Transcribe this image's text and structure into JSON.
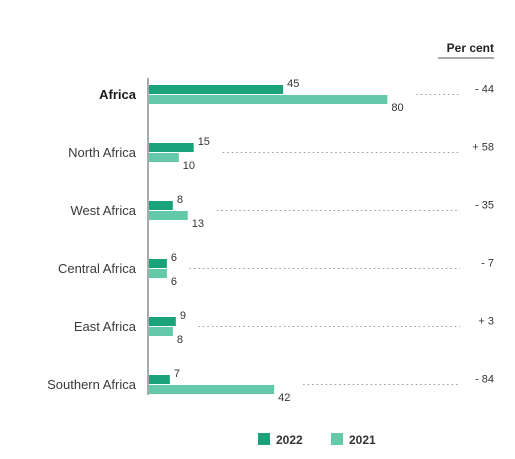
{
  "chart_data": {
    "type": "bar",
    "orientation": "horizontal",
    "categories": [
      "Africa",
      "North Africa",
      "West Africa",
      "Central Africa",
      "East Africa",
      "Southern Africa"
    ],
    "series": [
      {
        "name": "2022",
        "values": [
          45,
          15,
          8,
          6,
          9,
          7
        ],
        "color": "#1aa37a"
      },
      {
        "name": "2021",
        "values": [
          80,
          10,
          13,
          6,
          8,
          42
        ],
        "color": "#63c9a9"
      }
    ],
    "change_header": "Per cent",
    "percent_change": [
      "- 44",
      "+ 58",
      "- 35",
      "- 7",
      "+ 3",
      "- 84"
    ],
    "xlim": [
      0,
      80
    ],
    "grid": false,
    "legend_position": "bottom"
  }
}
